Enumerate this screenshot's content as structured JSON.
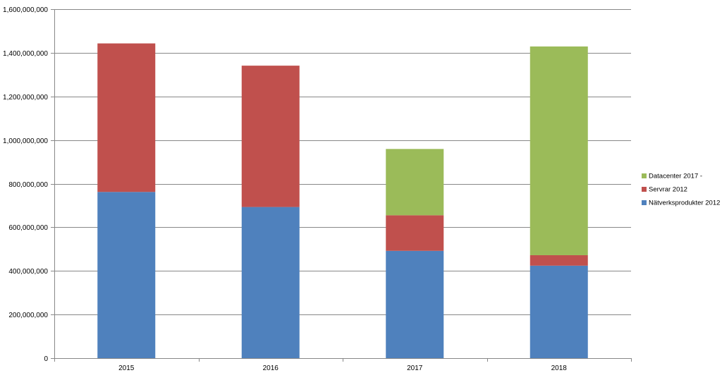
{
  "chart_data": {
    "type": "bar",
    "stacked": true,
    "categories": [
      "2015",
      "2016",
      "2017",
      "2018"
    ],
    "series": [
      {
        "name": "Nätverksprodukter 2012",
        "values": [
          762000000,
          693000000,
          492000000,
          424000000
        ]
      },
      {
        "name": "Servrar 2012",
        "values": [
          681000000,
          648000000,
          163000000,
          48000000
        ]
      },
      {
        "name": "Datacenter 2017 -",
        "values": [
          0,
          0,
          304000000,
          957000000
        ]
      }
    ],
    "ylim": [
      0,
      1600000000
    ],
    "ytick_step": 200000000,
    "yticks": [
      "0",
      "200,000,000",
      "400,000,000",
      "600,000,000",
      "800,000,000",
      "1,000,000,000",
      "1,200,000,000",
      "1,400,000,000",
      "1,600,000,000"
    ],
    "grid": true,
    "legend_position": "right",
    "legend_order": [
      "Datacenter 2017 -",
      "Servrar 2012",
      "Nätverksprodukter 2012"
    ],
    "colors": {
      "Nätverksprodukter 2012": "#4f81bd",
      "Servrar 2012": "#c0504d",
      "Datacenter 2017 -": "#9bbb59",
      "gridline": "#888888",
      "axis": "#888888",
      "text": "#000000"
    }
  }
}
